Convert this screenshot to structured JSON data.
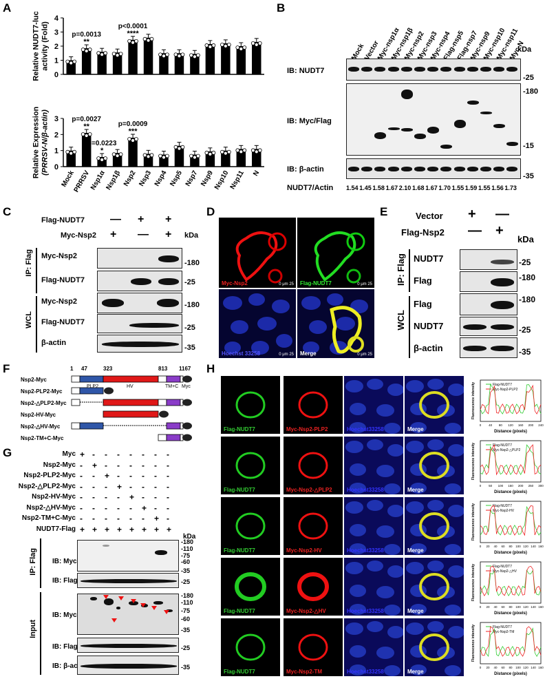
{
  "panels": {
    "a": "A",
    "b": "B",
    "c": "C",
    "d": "D",
    "e": "E",
    "f": "F",
    "g": "G",
    "h": "H"
  },
  "chart_data": [
    {
      "type": "bar",
      "ylabel": "Relative NUDT7-luc activity (Fold)",
      "ylim": [
        0,
        4
      ],
      "yticks": [
        "0",
        "1",
        "2",
        "3",
        "4"
      ],
      "categories": [
        "Mock",
        "PRRSV",
        "Nsp1α",
        "Nsp1β",
        "Nsp2",
        "Nsp3",
        "Nsp4",
        "Nsp5",
        "Nsp7",
        "Nsp9",
        "Nsp10",
        "Nsp11",
        "N"
      ],
      "values": [
        1.0,
        1.85,
        1.6,
        1.55,
        2.45,
        2.6,
        1.5,
        1.5,
        1.45,
        2.15,
        2.2,
        2.0,
        2.3
      ],
      "annotations": [
        {
          "index": 1,
          "p": "p=0.0013",
          "stars": "**"
        },
        {
          "index": 4,
          "p": "p<0.0001",
          "stars": "****"
        }
      ]
    },
    {
      "type": "bar",
      "ylabel": "Relative Expression (PRRSV-N/β-actin)",
      "ylim": [
        0,
        3
      ],
      "yticks": [
        "0",
        "1",
        "2",
        "3"
      ],
      "categories": [
        "Mock",
        "PRRSV",
        "Nsp1α",
        "Nsp1β",
        "Nsp2",
        "Nsp3",
        "Nsp4",
        "Nsp5",
        "Nsp7",
        "Nsp9",
        "Nsp10",
        "Nsp11",
        "N"
      ],
      "values": [
        1.0,
        2.1,
        0.6,
        0.85,
        1.8,
        0.8,
        0.75,
        1.3,
        0.75,
        0.95,
        1.0,
        1.1,
        1.1
      ],
      "annotations": [
        {
          "index": 1,
          "p": "p=0.0027",
          "stars": "**"
        },
        {
          "index": 2,
          "p": "p=0.0223",
          "stars": "*"
        },
        {
          "index": 4,
          "p": "p=0.0009",
          "stars": "***"
        }
      ]
    }
  ],
  "b": {
    "lanes": [
      "Mock",
      "Vector",
      "Myc-nsp1α",
      "Myc-nsp1β",
      "Myc-nsp2",
      "Myc-nsp3",
      "Myc-nsp4",
      "Flag-nsp5",
      "Flag-nsp7",
      "Myc-nsp9",
      "Myc-nsp10",
      "Myc-nsp11",
      "Myc-N"
    ],
    "kda": "kDa",
    "ib1": "IB: NUDT7",
    "ib2": "IB: Myc/Flag",
    "ib3": "IB: β-actin",
    "m25": "-25",
    "m180": "-180",
    "m15": "-15",
    "m35": "-35",
    "ratio_label": "NUDT7/Actin",
    "ratios": [
      "1.54",
      "1.45",
      "1.58",
      "1.67",
      "2.10",
      "1.68",
      "1.67",
      "1.70",
      "1.55",
      "1.59",
      "1.55",
      "1.56",
      "1.73"
    ]
  },
  "c": {
    "row1": "Flag-NUDT7",
    "row2": "Myc-Nsp2",
    "r1": [
      "—",
      "+",
      "+"
    ],
    "r2": [
      "+",
      "—",
      "+"
    ],
    "kda": "kDa",
    "ip": "IP: Flag",
    "wcl": "WCL",
    "l1": "Myc-Nsp2",
    "l2": "Flag-NUDT7",
    "l3": "Myc-Nsp2",
    "l4": "Flag-NUDT7",
    "l5": "β-actin",
    "m180": "-180",
    "m25": "-25",
    "m180b": "-180",
    "m25b": "-25",
    "m35": "-35"
  },
  "d": {
    "tl": "Myc-Nsp2",
    "tr": "Flag-NUDT7",
    "bl": "Hoechst 33258",
    "br": "Merge",
    "scale": "0   μm  25"
  },
  "e": {
    "row1": "Vector",
    "row2": "Flag-Nsp2",
    "r1": [
      "+",
      "—"
    ],
    "r2": [
      "—",
      "+"
    ],
    "kda": "kDa",
    "ip": "IP: Flag",
    "wcl": "WCL",
    "l1": "NUDT7",
    "l2": "Flag",
    "l3": "Flag",
    "l4": "NUDT7",
    "l5": "β-actin",
    "m1": "-25",
    "m2": "-180",
    "m3": "-180",
    "m4": "-25",
    "m5": "-35"
  },
  "f": {
    "nums": [
      "1",
      "47",
      "323",
      "813",
      "1167"
    ],
    "rows": [
      "Nsp2-Myc",
      "Nsp2-PLP2-Myc",
      "Nsp2-△PLP2-Myc",
      "Nsp2-HV-Myc",
      "Nsp2-△HV-Myc",
      "Nsp2-TM+C-Myc"
    ],
    "plp2": "PLP2",
    "hv": "HV",
    "tmc": "TM+C",
    "myc": "Myc"
  },
  "g": {
    "rows": [
      "Myc",
      "Nsp2-Myc",
      "Nsp2-PLP2-Myc",
      "Nsp2-△PLP2-Myc",
      "Nsp2-HV-Myc",
      "Nsp2-△HV-Myc",
      "Nsp2-TM+C-Myc",
      "NUDT7-Flag"
    ],
    "kda": "kDa",
    "ip": "IP: Flag",
    "input": "Input",
    "ib_myc": "IB: Myc",
    "ib_flag": "IB: Flag",
    "ib_myc2": "IB: Myc",
    "ib_flag2": "IB: Flag",
    "ib_actin": "IB: β-actin",
    "m": [
      "-180",
      "-110",
      "-75",
      "-60",
      "-35"
    ],
    "m25": "-25",
    "m2": [
      "-180",
      "-110",
      "-75",
      "-60",
      "-35"
    ],
    "m25b": "-25",
    "m35": "-35"
  },
  "h": {
    "rows": [
      {
        "a": "Flag-NUDT7",
        "b": "Myc-Nsp2-PLP2",
        "c": "Hoechst33258",
        "d": "Merge",
        "legend": [
          "Flag-NUDT7",
          "Myc-Nsp2-PLP2"
        ],
        "xticks": [
          "0",
          "40",
          "80",
          "120",
          "160",
          "200",
          "240"
        ]
      },
      {
        "a": "Flag-NUDT7",
        "b": "Myc-Nsp2-△PLP2",
        "c": "Hoechst33258",
        "d": "Merge",
        "legend": [
          "Flag-NUDT7",
          "Myc-Nsp2-△PLP2"
        ],
        "xticks": [
          "0",
          "50",
          "100",
          "150",
          "200",
          "250",
          "300"
        ]
      },
      {
        "a": "Flag-NUDT7",
        "b": "Myc-Nsp2-HV",
        "c": "Hoechst33258",
        "d": "Merge",
        "legend": [
          "Flag-NUDT7",
          "Myc-Nsp2-HV"
        ],
        "xticks": [
          "0",
          "20",
          "40",
          "60",
          "80",
          "100",
          "120",
          "140",
          "160"
        ]
      },
      {
        "a": "Flag-NUDT7",
        "b": "Myc-Nsp2-△HV",
        "c": "Hoechst33258",
        "d": "Merge",
        "legend": [
          "Flag-NUDT7",
          "Myc-Nsp2-△HV"
        ],
        "xticks": [
          "0",
          "20",
          "40",
          "60",
          "80",
          "100",
          "120",
          "140",
          "160"
        ]
      },
      {
        "a": "Flag-NUDT7",
        "b": "Myc-Nsp2-TM",
        "c": "Hoechst33258",
        "d": "Merge",
        "legend": [
          "Flag-NUDT7",
          "Myc-Nsp2-TM"
        ],
        "xticks": [
          "0",
          "20",
          "40",
          "60",
          "80",
          "100",
          "120",
          "140",
          "160"
        ]
      }
    ],
    "ylabel": "Fluorescence intensity",
    "xlabel": "Distance (pixels)"
  }
}
